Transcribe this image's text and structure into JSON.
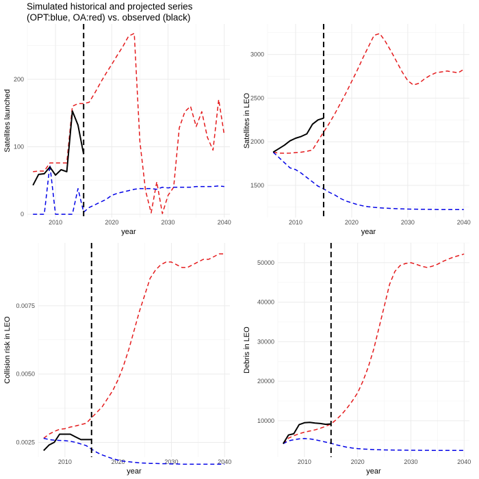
{
  "figure": {
    "title": "Simulated historical and projected series\n(OPT:blue, OA:red) vs. observed (black)"
  },
  "chart_data": [
    {
      "type": "line",
      "xlabel": "year",
      "ylabel": "Satellites launched",
      "xlim": [
        2005,
        2041
      ],
      "ylim": [
        -5,
        282
      ],
      "xticks": [
        2010,
        2020,
        2030,
        2040
      ],
      "yticks": [
        0,
        100,
        200
      ],
      "ytick_labels": [
        "0",
        "100",
        "200"
      ],
      "vline_x": 2015,
      "grid": true,
      "series": [
        {
          "color": "#e41a1c",
          "dash": true,
          "x": [
            2006,
            2007,
            2008,
            2009,
            2010,
            2011,
            2012,
            2013,
            2014,
            2015,
            2016,
            2017,
            2018,
            2019,
            2020,
            2021,
            2022,
            2023,
            2024,
            2025,
            2026,
            2027,
            2028,
            2029,
            2030,
            2031,
            2032,
            2033,
            2034,
            2035,
            2036,
            2037,
            2038,
            2039,
            2040
          ],
          "y": [
            63,
            64,
            64,
            76,
            76,
            76,
            76,
            160,
            164,
            164,
            166,
            180,
            195,
            209,
            222,
            236,
            249,
            264,
            268,
            108,
            35,
            2,
            48,
            1,
            28,
            40,
            128,
            152,
            160,
            130,
            152,
            114,
            95,
            170,
            117
          ]
        },
        {
          "color": "#0000e6",
          "dash": true,
          "x": [
            2006,
            2007,
            2008,
            2009,
            2010,
            2011,
            2012,
            2013,
            2014,
            2015,
            2016,
            2017,
            2018,
            2019,
            2020,
            2021,
            2022,
            2023,
            2024,
            2025,
            2026,
            2027,
            2028,
            2029,
            2030,
            2031,
            2032,
            2033,
            2034,
            2035,
            2036,
            2037,
            2038,
            2039,
            2040
          ],
          "y": [
            0,
            0,
            0,
            73,
            0,
            0,
            0,
            0,
            38,
            3,
            10,
            14,
            18,
            22,
            28,
            31,
            33,
            35,
            37,
            38,
            38,
            38,
            37,
            40,
            39,
            40,
            40,
            40,
            40,
            41,
            41,
            41,
            41,
            42,
            41
          ]
        },
        {
          "color": "#000000",
          "dash": false,
          "x": [
            2006,
            2007,
            2008,
            2009,
            2010,
            2011,
            2012,
            2013,
            2014,
            2015
          ],
          "y": [
            43,
            59,
            60,
            70,
            58,
            66,
            63,
            153,
            132,
            89
          ]
        }
      ]
    },
    {
      "type": "line",
      "xlabel": "year",
      "ylabel": "Satellites in LEO",
      "xlim": [
        2005,
        2041
      ],
      "ylim": [
        1130,
        3350
      ],
      "xticks": [
        2010,
        2020,
        2030,
        2040
      ],
      "yticks": [
        1500,
        2000,
        2500,
        3000
      ],
      "ytick_labels": [
        "1500",
        "2000",
        "2500",
        "3000"
      ],
      "vline_x": 2015,
      "grid": true,
      "series": [
        {
          "color": "#e41a1c",
          "dash": true,
          "x": [
            2006,
            2007,
            2008,
            2009,
            2010,
            2011,
            2012,
            2013,
            2014,
            2015,
            2016,
            2017,
            2018,
            2019,
            2020,
            2021,
            2022,
            2023,
            2024,
            2025,
            2026,
            2027,
            2028,
            2029,
            2030,
            2031,
            2032,
            2033,
            2034,
            2035,
            2036,
            2037,
            2038,
            2039,
            2040
          ],
          "y": [
            1880,
            1870,
            1868,
            1870,
            1875,
            1880,
            1890,
            1905,
            2010,
            2110,
            2210,
            2320,
            2440,
            2560,
            2690,
            2820,
            2960,
            3090,
            3220,
            3240,
            3150,
            3040,
            2920,
            2800,
            2700,
            2650,
            2670,
            2720,
            2760,
            2790,
            2800,
            2810,
            2800,
            2790,
            2830
          ]
        },
        {
          "color": "#0000e6",
          "dash": true,
          "x": [
            2006,
            2007,
            2008,
            2009,
            2010,
            2011,
            2012,
            2013,
            2014,
            2015,
            2016,
            2017,
            2018,
            2019,
            2020,
            2021,
            2022,
            2023,
            2024,
            2025,
            2026,
            2027,
            2028,
            2029,
            2030,
            2031,
            2032,
            2033,
            2034,
            2035,
            2036,
            2037,
            2038,
            2039,
            2040
          ],
          "y": [
            1880,
            1820,
            1760,
            1700,
            1680,
            1640,
            1590,
            1540,
            1490,
            1460,
            1420,
            1390,
            1350,
            1320,
            1300,
            1280,
            1265,
            1255,
            1248,
            1242,
            1238,
            1235,
            1232,
            1230,
            1228,
            1227,
            1226,
            1225,
            1224,
            1223,
            1222,
            1222,
            1222,
            1222,
            1222
          ]
        },
        {
          "color": "#000000",
          "dash": false,
          "x": [
            2006,
            2007,
            2008,
            2009,
            2010,
            2011,
            2012,
            2013,
            2014,
            2015
          ],
          "y": [
            1880,
            1920,
            1960,
            2010,
            2040,
            2060,
            2090,
            2200,
            2250,
            2270
          ]
        }
      ]
    },
    {
      "type": "line",
      "xlabel": "year",
      "ylabel": "Collision risk in LEO",
      "xlim": [
        2005,
        2041
      ],
      "ylim": [
        0.00196,
        0.0098
      ],
      "xticks": [
        2010,
        2020,
        2030,
        2040
      ],
      "yticks": [
        0.0025,
        0.005,
        0.0075
      ],
      "ytick_labels": [
        "0.0025",
        "0.0050",
        "0.0075"
      ],
      "vline_x": 2015,
      "grid": true,
      "series": [
        {
          "color": "#e41a1c",
          "dash": true,
          "x": [
            2006,
            2007,
            2008,
            2009,
            2010,
            2011,
            2012,
            2013,
            2014,
            2015,
            2016,
            2017,
            2018,
            2019,
            2020,
            2021,
            2022,
            2023,
            2024,
            2025,
            2026,
            2027,
            2028,
            2029,
            2030,
            2031,
            2032,
            2033,
            2034,
            2035,
            2036,
            2037,
            2038,
            2039,
            2040
          ],
          "y": [
            0.00265,
            0.0028,
            0.0029,
            0.00298,
            0.003,
            0.00306,
            0.0031,
            0.00315,
            0.0032,
            0.0034,
            0.0036,
            0.0038,
            0.0041,
            0.0044,
            0.0048,
            0.0053,
            0.0059,
            0.0066,
            0.0073,
            0.0079,
            0.0085,
            0.0088,
            0.009,
            0.0091,
            0.0091,
            0.009,
            0.0089,
            0.0089,
            0.009,
            0.0091,
            0.0092,
            0.0092,
            0.0093,
            0.0094,
            0.0094
          ]
        },
        {
          "color": "#0000e6",
          "dash": true,
          "x": [
            2006,
            2007,
            2008,
            2009,
            2010,
            2011,
            2012,
            2013,
            2014,
            2015,
            2016,
            2017,
            2018,
            2019,
            2020,
            2021,
            2022,
            2023,
            2024,
            2025,
            2026,
            2027,
            2028,
            2029,
            2030,
            2031,
            2032,
            2033,
            2034,
            2035,
            2036,
            2037,
            2038,
            2039,
            2040
          ],
          "y": [
            0.00265,
            0.0026,
            0.00258,
            0.00257,
            0.00256,
            0.00254,
            0.0025,
            0.00244,
            0.00238,
            0.00225,
            0.00213,
            0.00204,
            0.00197,
            0.0019,
            0.00185,
            0.00181,
            0.00179,
            0.00177,
            0.00175,
            0.00174,
            0.00173,
            0.00173,
            0.00172,
            0.00172,
            0.00171,
            0.00171,
            0.0017,
            0.0017,
            0.0017,
            0.0017,
            0.0017,
            0.0017,
            0.0017,
            0.0017,
            0.0017
          ]
        },
        {
          "color": "#000000",
          "dash": false,
          "x": [
            2006,
            2007,
            2008,
            2009,
            2010,
            2011,
            2012,
            2013,
            2014,
            2015
          ],
          "y": [
            0.0022,
            0.0024,
            0.0025,
            0.0028,
            0.0028,
            0.0028,
            0.0027,
            0.0026,
            0.0026,
            0.0026
          ]
        }
      ]
    },
    {
      "type": "line",
      "xlabel": "year",
      "ylabel": "Debris in LEO",
      "xlim": [
        2005,
        2041
      ],
      "ylim": [
        800,
        55000
      ],
      "xticks": [
        2010,
        2020,
        2030,
        2040
      ],
      "yticks": [
        10000,
        20000,
        30000,
        40000,
        50000
      ],
      "ytick_labels": [
        "10000",
        "20000",
        "30000",
        "40000",
        "50000"
      ],
      "vline_x": 2015,
      "grid": true,
      "series": [
        {
          "color": "#e41a1c",
          "dash": true,
          "x": [
            2006,
            2007,
            2008,
            2009,
            2010,
            2011,
            2012,
            2013,
            2014,
            2015,
            2016,
            2017,
            2018,
            2019,
            2020,
            2021,
            2022,
            2023,
            2024,
            2025,
            2026,
            2027,
            2028,
            2029,
            2030,
            2031,
            2032,
            2033,
            2034,
            2035,
            2036,
            2037,
            2038,
            2039,
            2040
          ],
          "y": [
            4200,
            5600,
            6200,
            6700,
            7100,
            7400,
            7700,
            8100,
            8600,
            9200,
            10300,
            11600,
            13200,
            15000,
            17100,
            20000,
            23600,
            28000,
            33500,
            39000,
            44500,
            47800,
            49300,
            49800,
            50000,
            49600,
            49100,
            48800,
            49100,
            49600,
            50300,
            50900,
            51400,
            51800,
            52200
          ]
        },
        {
          "color": "#0000e6",
          "dash": true,
          "x": [
            2006,
            2007,
            2008,
            2009,
            2010,
            2011,
            2012,
            2013,
            2014,
            2015,
            2016,
            2017,
            2018,
            2019,
            2020,
            2021,
            2022,
            2023,
            2024,
            2025,
            2026,
            2027,
            2028,
            2029,
            2030,
            2031,
            2032,
            2033,
            2034,
            2035,
            2036,
            2037,
            2038,
            2039,
            2040
          ],
          "y": [
            4200,
            4900,
            5200,
            5400,
            5500,
            5400,
            5200,
            4900,
            4600,
            4300,
            3900,
            3600,
            3300,
            3100,
            2950,
            2850,
            2770,
            2700,
            2650,
            2620,
            2600,
            2580,
            2560,
            2550,
            2540,
            2530,
            2520,
            2510,
            2500,
            2500,
            2500,
            2500,
            2500,
            2500,
            2500
          ]
        },
        {
          "color": "#000000",
          "dash": false,
          "x": [
            2006,
            2007,
            2008,
            2009,
            2010,
            2011,
            2012,
            2013,
            2014,
            2015
          ],
          "y": [
            4200,
            6400,
            6700,
            9000,
            9500,
            9600,
            9400,
            9300,
            9100,
            9200
          ]
        }
      ]
    }
  ]
}
